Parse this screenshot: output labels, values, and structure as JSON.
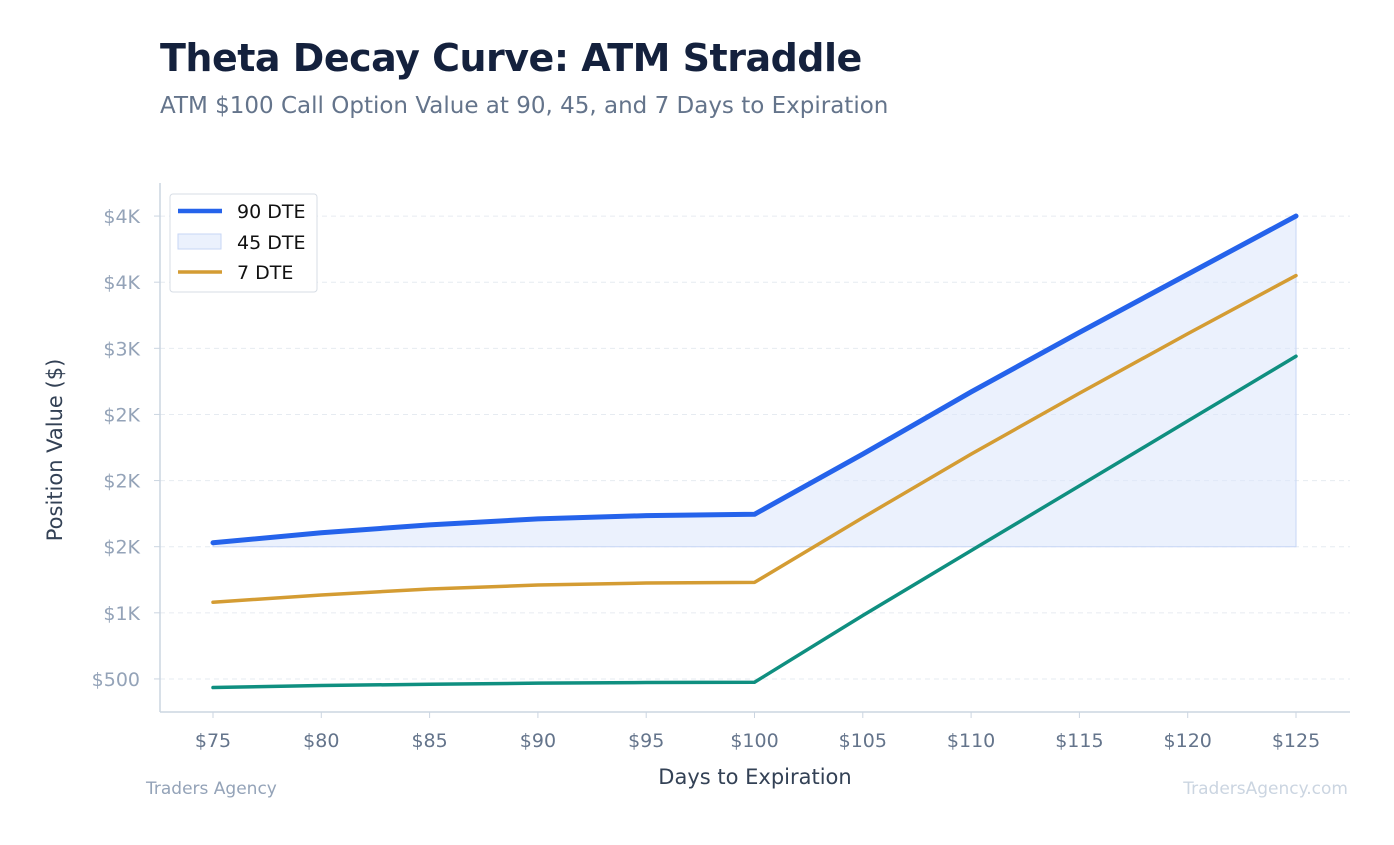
{
  "chart_data": {
    "type": "line",
    "title": "Theta Decay Curve: ATM Straddle",
    "subtitle": "ATM $100 Call Option Value at 90, 45, and 7 Days to Expiration",
    "xlabel": "Days to Expiration",
    "ylabel": "Position Value ($)",
    "x": [
      75,
      80,
      85,
      90,
      95,
      100,
      105,
      110,
      115,
      120,
      125
    ],
    "x_tick_labels": [
      "$75",
      "$80",
      "$85",
      "$90",
      "$95",
      "$100",
      "$105",
      "$110",
      "$115",
      "$120",
      "$125"
    ],
    "y_ticks": [
      500,
      1000,
      1500,
      2000,
      2500,
      3000,
      3500,
      4000
    ],
    "y_tick_labels": [
      "$500",
      "$1K",
      "$2K",
      "$2K",
      "$2K",
      "$3K",
      "$4K",
      "$4K"
    ],
    "ylim": [
      250,
      4250
    ],
    "grid": true,
    "legend_position": "top-left",
    "series": [
      {
        "name": "90 DTE",
        "style": "line",
        "color": "#2563eb",
        "values": [
          1530,
          1605,
          1665,
          1710,
          1735,
          1745,
          2200,
          2670,
          3120,
          3560,
          4000
        ]
      },
      {
        "name": "45 DTE",
        "style": "band",
        "color": "#dbe6fb",
        "base": 1500,
        "values": [
          1530,
          1605,
          1665,
          1710,
          1735,
          1745,
          2200,
          2670,
          3120,
          3560,
          4000
        ]
      },
      {
        "name": "7 DTE",
        "style": "line",
        "color": "#d49c33",
        "values": [
          1080,
          1135,
          1180,
          1210,
          1225,
          1230,
          1720,
          2200,
          2660,
          3110,
          3550
        ]
      },
      {
        "style": "line",
        "color": "#0f8f80",
        "values": [
          435,
          450,
          460,
          468,
          473,
          475,
          980,
          1470,
          1960,
          2450,
          2940
        ]
      }
    ]
  },
  "footer": {
    "brand_left": "Traders Agency",
    "brand_right": "TradersAgency.com"
  }
}
